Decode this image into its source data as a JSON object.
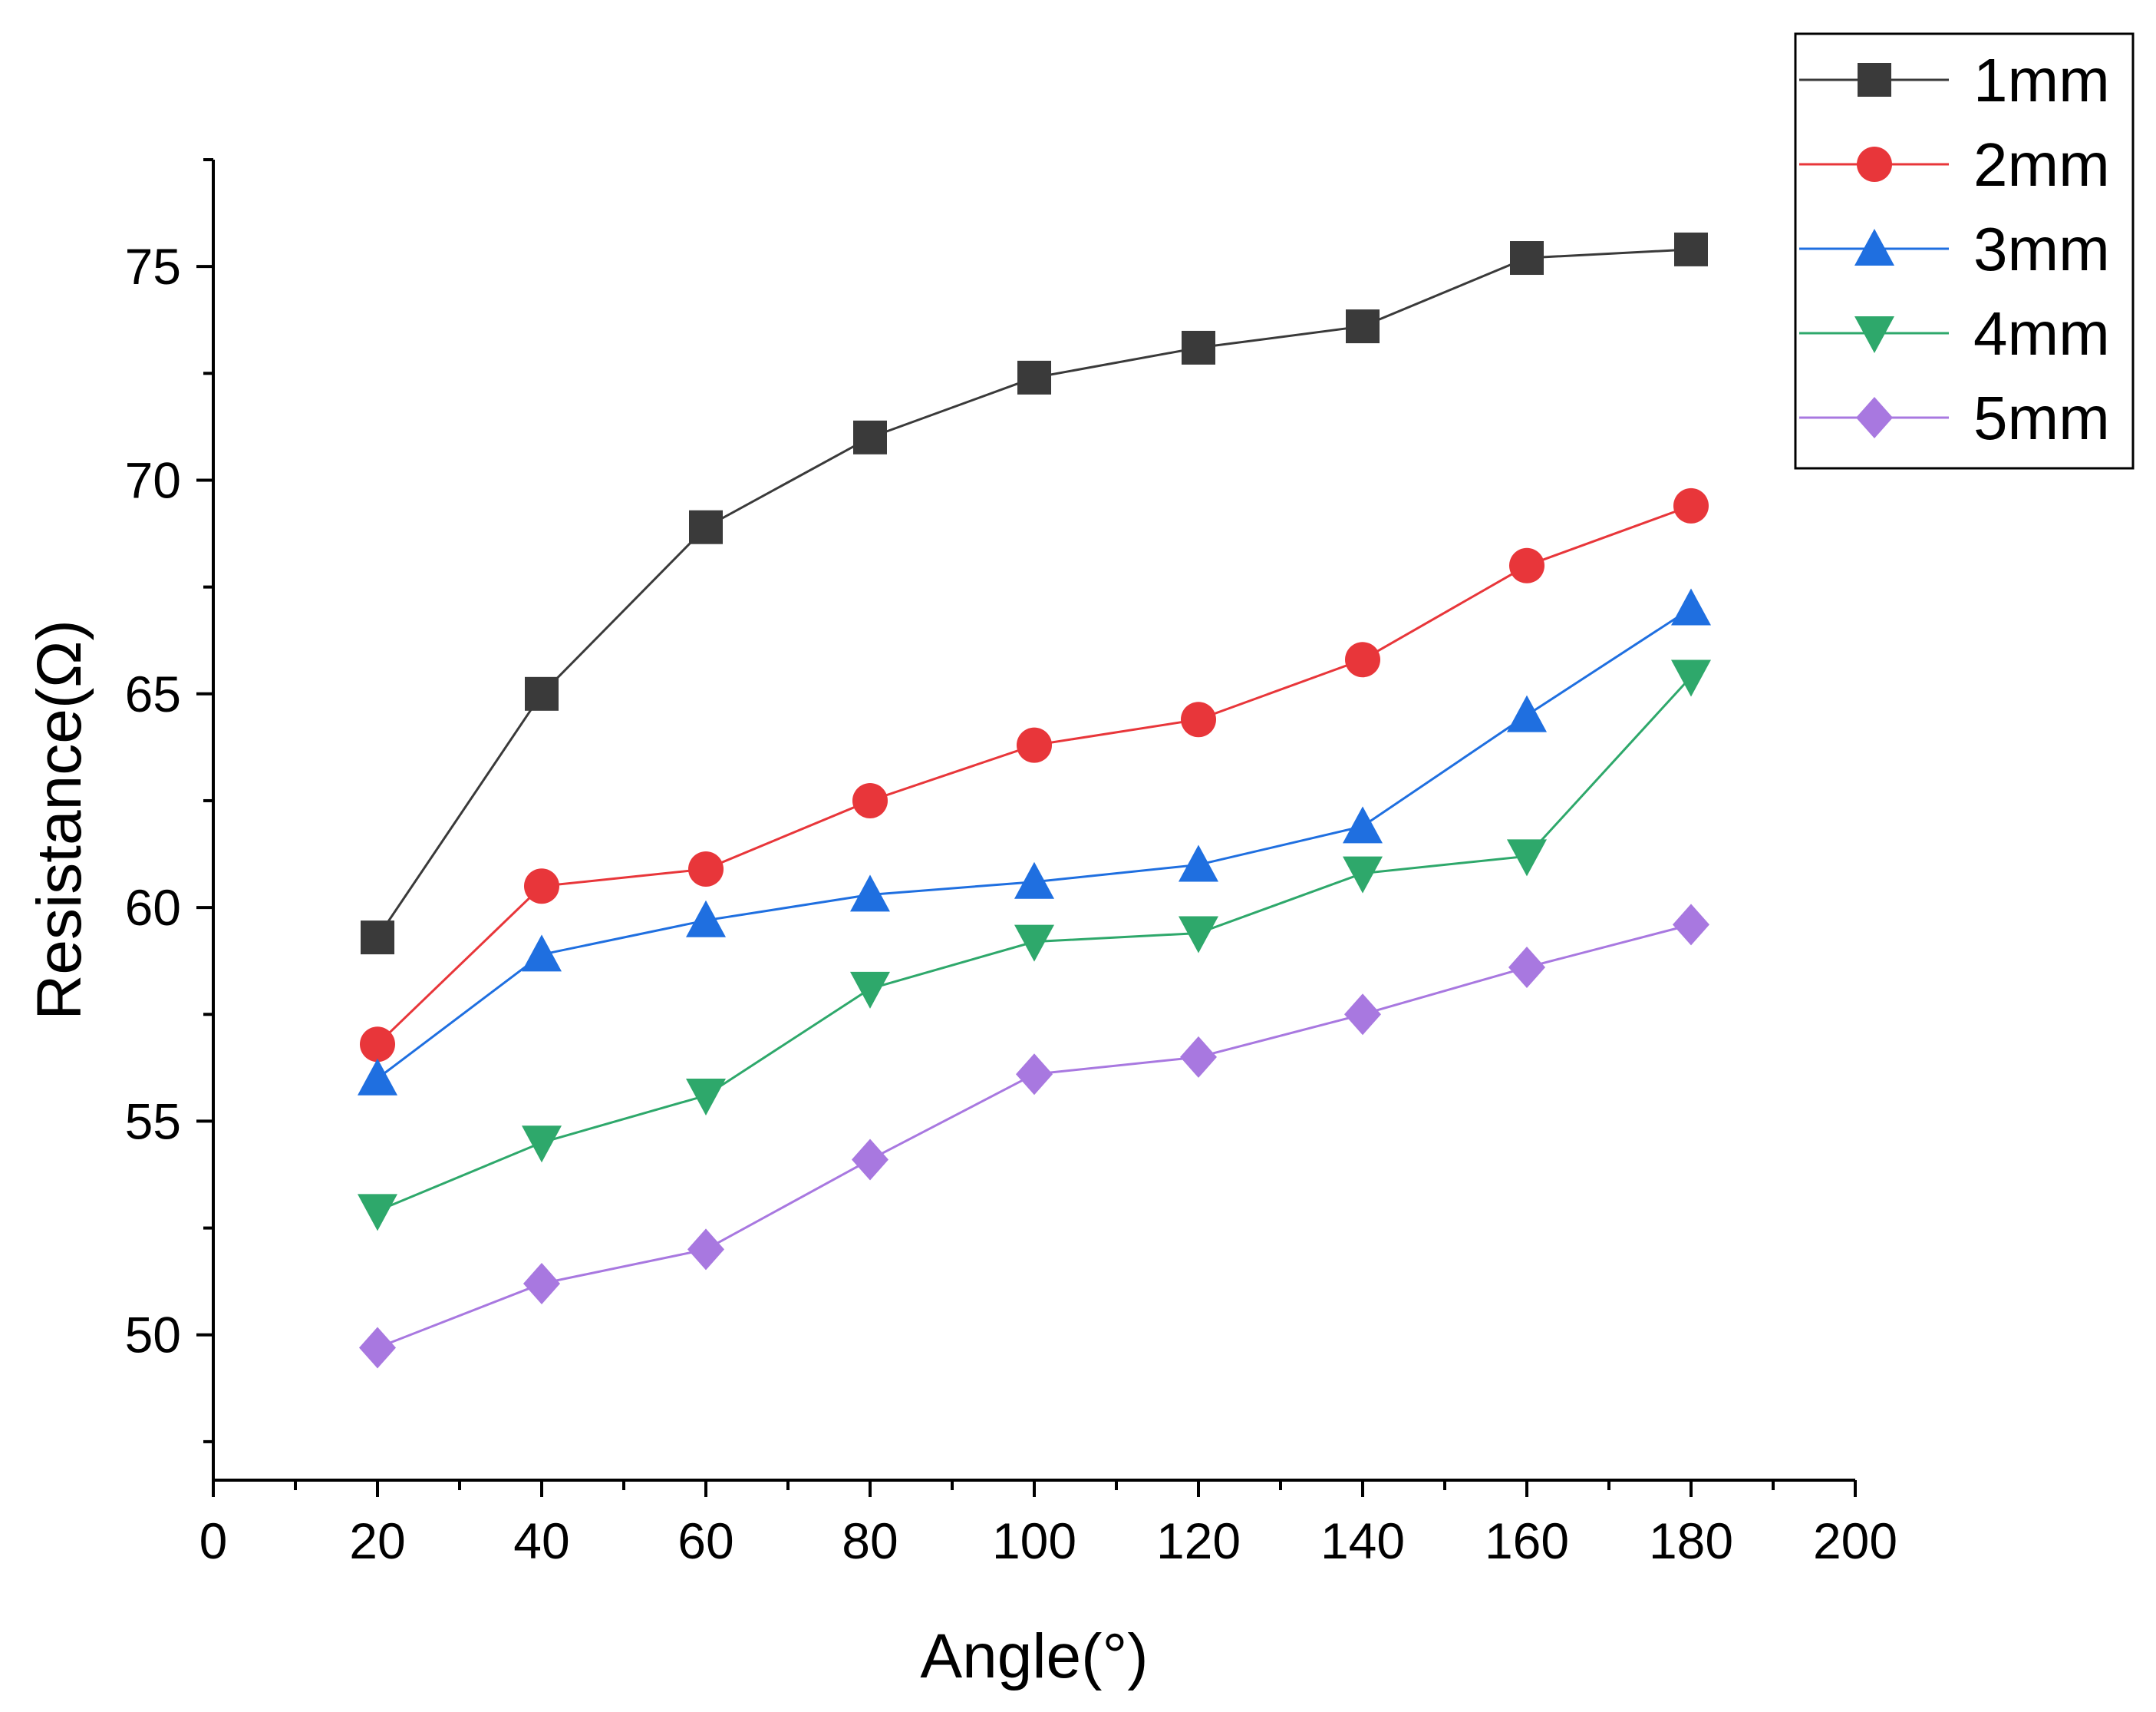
{
  "chart_data": {
    "type": "line",
    "title": "",
    "xlabel": "Angle(°)",
    "ylabel": "Resistance(Ω)",
    "xlim": [
      0,
      200
    ],
    "ylim": [
      46.6,
      77.5
    ],
    "xticks": [
      0,
      20,
      40,
      60,
      80,
      100,
      120,
      140,
      160,
      180,
      200
    ],
    "yticks": [
      50,
      55,
      60,
      65,
      70,
      75
    ],
    "x": [
      20,
      40,
      60,
      80,
      100,
      120,
      140,
      160,
      180
    ],
    "grid": false,
    "legend_position": "top-right",
    "series": [
      {
        "name": "1mm",
        "color": "#3a3a3a",
        "marker": "square",
        "values": [
          59.3,
          65.0,
          68.9,
          71.0,
          72.4,
          73.1,
          73.6,
          75.2,
          75.4
        ]
      },
      {
        "name": "2mm",
        "color": "#e8363a",
        "marker": "circle",
        "values": [
          56.8,
          60.5,
          60.9,
          62.5,
          63.8,
          64.4,
          65.8,
          68.0,
          69.4
        ]
      },
      {
        "name": "3mm",
        "color": "#1f6fe0",
        "marker": "triangle-up",
        "values": [
          56.0,
          58.9,
          59.7,
          60.3,
          60.6,
          61.0,
          61.9,
          64.5,
          67.0
        ]
      },
      {
        "name": "4mm",
        "color": "#2ea86b",
        "marker": "triangle-down",
        "values": [
          52.9,
          54.5,
          55.6,
          58.1,
          59.2,
          59.4,
          60.8,
          61.2,
          65.4
        ]
      },
      {
        "name": "5mm",
        "color": "#a878e0",
        "marker": "diamond",
        "values": [
          49.7,
          51.2,
          52.0,
          54.1,
          56.1,
          56.5,
          57.5,
          58.6,
          59.6
        ]
      }
    ]
  }
}
